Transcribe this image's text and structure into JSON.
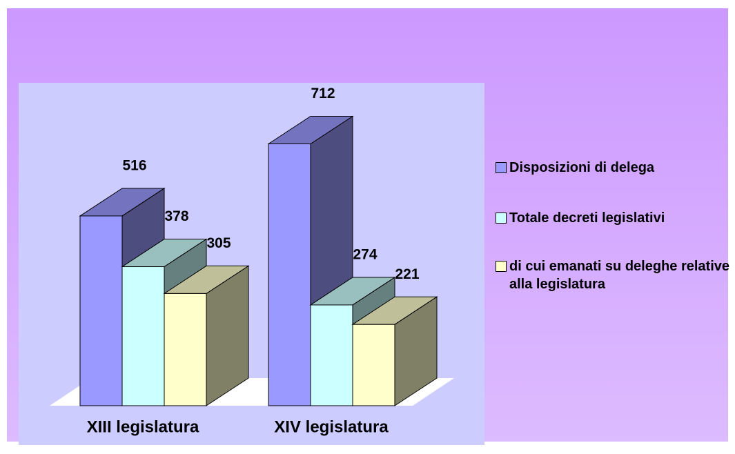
{
  "chart_data": {
    "type": "bar3d",
    "categories": [
      "XIII legislatura",
      "XIV legislatura"
    ],
    "series": [
      {
        "name": "Disposizioni di delega",
        "color": "#9999ff",
        "values": [
          516,
          712
        ]
      },
      {
        "name": "Totale decreti legislativi",
        "color": "#ccffff",
        "values": [
          378,
          274
        ]
      },
      {
        "name": "di cui emanati su deleghe relative alla legislatura",
        "color": "#ffffcc",
        "values": [
          305,
          221
        ]
      }
    ],
    "legend": "right"
  }
}
